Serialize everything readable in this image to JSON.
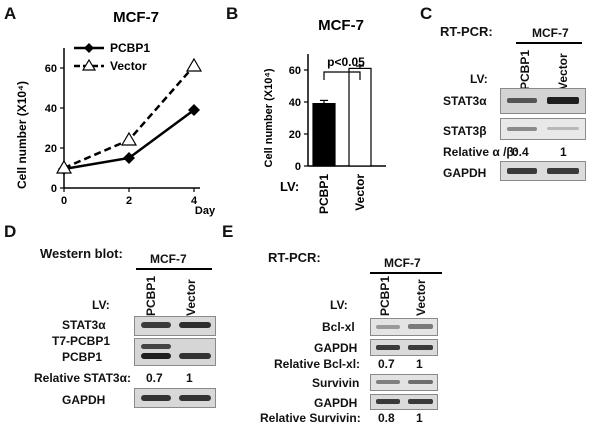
{
  "panels": {
    "A": "A",
    "B": "B",
    "C": "C",
    "D": "D",
    "E": "E"
  },
  "panelA": {
    "chart_data": {
      "type": "line",
      "title": "MCF-7",
      "xlabel": "Day",
      "ylabel": "Cell number (X10⁴)",
      "x": [
        0,
        2,
        4
      ],
      "xticks": [
        "0",
        "2",
        "4"
      ],
      "yticks": [
        "0",
        "20",
        "40",
        "60"
      ],
      "ylim": [
        0,
        70
      ],
      "legend_position": "top-left",
      "series": [
        {
          "name": "PCBP1",
          "values": [
            9.5,
            15,
            39
          ],
          "line": "solid",
          "marker": "diamond",
          "color": "#000000"
        },
        {
          "name": "Vector",
          "values": [
            10,
            24,
            61
          ],
          "line": "dashed",
          "marker": "triangle-open",
          "color": "#000000"
        }
      ]
    }
  },
  "panelB": {
    "chart_data": {
      "type": "bar",
      "title": "MCF-7",
      "ylabel": "Cell number (X10⁴)",
      "categories": [
        "PCBP1",
        "Vector"
      ],
      "values": [
        39,
        61
      ],
      "errors": [
        2,
        1.5
      ],
      "ylim": [
        0,
        70
      ],
      "yticks": [
        "0",
        "20",
        "40",
        "60"
      ],
      "fills": [
        "#000000",
        "#ffffff"
      ],
      "annotation": "p<0.05",
      "xprefix": "LV:"
    }
  },
  "panelC": {
    "header": "RT-PCR:",
    "cell_line": "MCF-7",
    "lv": "LV:",
    "lanes": [
      "PCBP1",
      "Vector"
    ],
    "rows": [
      "STAT3α",
      "STAT3β",
      "GAPDH"
    ],
    "ratio_label": "Relative α /β:",
    "ratios": [
      "0.4",
      "1"
    ]
  },
  "panelD": {
    "header": "Western blot:",
    "cell_line": "MCF-7",
    "lv": "LV:",
    "lanes": [
      "PCBP1",
      "Vector"
    ],
    "rows": [
      "STAT3α",
      "T7-PCBP1",
      "PCBP1",
      "GAPDH"
    ],
    "ratio_label": "Relative STAT3α:",
    "ratios": [
      "0.7",
      "1"
    ]
  },
  "panelE": {
    "header": "RT-PCR:",
    "cell_line": "MCF-7",
    "lv": "LV:",
    "lanes": [
      "PCBP1",
      "Vector"
    ],
    "rows": [
      "Bcl-xl",
      "GAPDH",
      "Survivin",
      "GAPDH"
    ],
    "ratio1_label": "Relative Bcl-xl:",
    "ratios1": [
      "0.7",
      "1"
    ],
    "ratio2_label": "Relative Survivin:",
    "ratios2": [
      "0.8",
      "1"
    ]
  }
}
